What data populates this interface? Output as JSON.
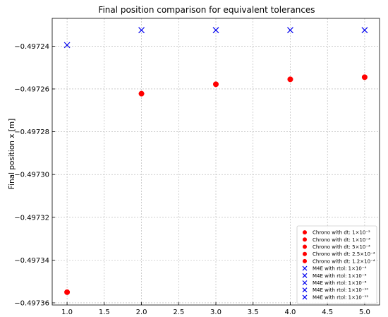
{
  "chart_data": {
    "type": "scatter",
    "title": "Final position comparison for equivalent tolerances",
    "xlabel": "",
    "ylabel": "Final position x [m]",
    "xlim": [
      0.8,
      5.2
    ],
    "ylim": [
      -0.497361,
      -0.497227
    ],
    "xticks": [
      1.0,
      1.5,
      2.0,
      2.5,
      3.0,
      3.5,
      4.0,
      4.5,
      5.0
    ],
    "xtick_labels": [
      "1.0",
      "1.5",
      "2.0",
      "2.5",
      "3.0",
      "3.5",
      "4.0",
      "4.5",
      "5.0"
    ],
    "yticks": [
      -0.49724,
      -0.49726,
      -0.49728,
      -0.4973,
      -0.49732,
      -0.49734,
      -0.49736
    ],
    "ytick_labels": [
      "−0.49724",
      "−0.49726",
      "−0.49728",
      "−0.49730",
      "−0.49732",
      "−0.49734",
      "−0.49736"
    ],
    "grid": true,
    "legend_position": "lower-right",
    "series": [
      {
        "name": "Chrono with dt: 1×10⁻²",
        "marker": "circle",
        "color": "#ff0000",
        "x": [
          1.0
        ],
        "y": [
          -0.497355
        ]
      },
      {
        "name": "Chrono with dt: 1×10⁻³",
        "marker": "circle",
        "color": "#ff0000",
        "x": [
          2.0
        ],
        "y": [
          -0.4972622
        ]
      },
      {
        "name": "Chrono with dt: 5×10⁻⁴",
        "marker": "circle",
        "color": "#ff0000",
        "x": [
          3.0
        ],
        "y": [
          -0.4972578
        ]
      },
      {
        "name": "Chrono with dt: 2.5×10⁻⁴",
        "marker": "circle",
        "color": "#ff0000",
        "x": [
          4.0
        ],
        "y": [
          -0.4972555
        ]
      },
      {
        "name": "Chrono with dt: 1.2×10⁻⁴",
        "marker": "circle",
        "color": "#ff0000",
        "x": [
          5.0
        ],
        "y": [
          -0.4972545
        ]
      },
      {
        "name": "M4E with rtol: 1×10⁻⁴",
        "marker": "x",
        "color": "#0000ee",
        "x": [
          1.0
        ],
        "y": [
          -0.4972395
        ]
      },
      {
        "name": "M4E with rtol: 1×10⁻⁶",
        "marker": "x",
        "color": "#0000ee",
        "x": [
          2.0
        ],
        "y": [
          -0.4972325
        ]
      },
      {
        "name": "M4E with rtol: 1×10⁻⁸",
        "marker": "x",
        "color": "#0000ee",
        "x": [
          3.0
        ],
        "y": [
          -0.4972325
        ]
      },
      {
        "name": "M4E with rtol: 1×10⁻¹⁰",
        "marker": "x",
        "color": "#0000ee",
        "x": [
          4.0
        ],
        "y": [
          -0.4972325
        ]
      },
      {
        "name": "M4E with rtol: 1×10⁻¹²",
        "marker": "x",
        "color": "#0000ee",
        "x": [
          5.0
        ],
        "y": [
          -0.4972325
        ]
      }
    ]
  }
}
